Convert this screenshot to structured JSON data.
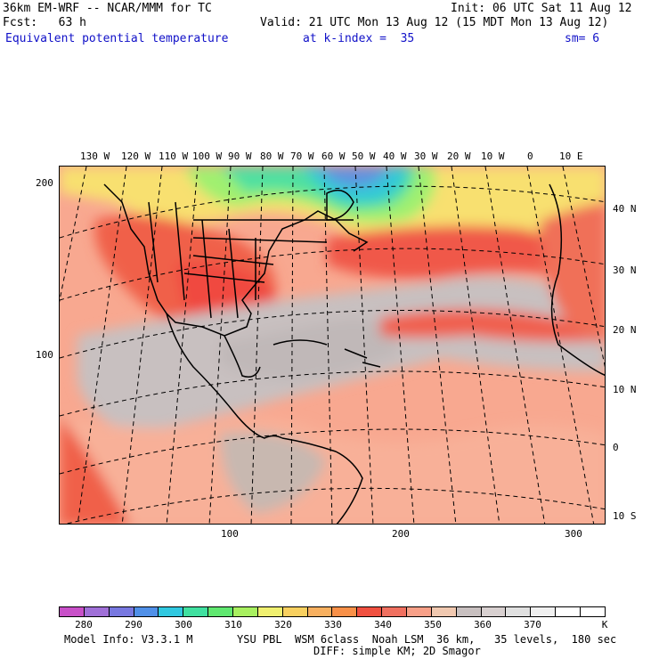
{
  "header": {
    "model": "36km EM-WRF -- NCAR/MMM for TC",
    "init": "Init: 06 UTC Sat 11 Aug 12",
    "fcst": "Fcst:   63 h",
    "valid": "Valid: 21 UTC Mon 13 Aug 12 (15 MDT Mon 13 Aug 12)",
    "field": "Equivalent potential temperature",
    "level": "at k-index =  35",
    "smooth": "sm= 6"
  },
  "top_lon_labels": [
    "130 W",
    "120 W",
    "110 W",
    "100 W",
    "90 W",
    "80 W",
    "70 W",
    "60 W",
    "50 W",
    "40 W",
    "30 W",
    "20 W",
    "10 W",
    "0",
    "10 E"
  ],
  "right_lat_labels": [
    "40 N",
    "30 N",
    "20 N",
    "10 N",
    "0",
    "10 S"
  ],
  "left_grid_labels": [
    "200",
    "100"
  ],
  "bottom_grid_labels": [
    "100",
    "200",
    "300"
  ],
  "colorbar": {
    "labels": [
      "280",
      "290",
      "300",
      "310",
      "320",
      "330",
      "340",
      "350",
      "360",
      "370"
    ],
    "unit": "K",
    "colors": [
      "#c850c8",
      "#a070d8",
      "#7878e0",
      "#5090e8",
      "#30c8e0",
      "#40e0a0",
      "#60e870",
      "#a8f060",
      "#f0f070",
      "#f8d060",
      "#f8b060",
      "#f89048",
      "#f05040",
      "#f07060",
      "#f8a088",
      "#f0c8b0",
      "#c8c0c0",
      "#d8d0d0",
      "#e0e0e0",
      "#f0f0f0",
      "#ffffff",
      "#ffffff"
    ]
  },
  "footer": {
    "info": "Model Info: V3.3.1 M",
    "phys1": "YSU PBL  WSM 6class  Noah LSM  36 km,   35 levels,  180 sec",
    "phys2": "DIFF: simple KM; 2D Smagor"
  }
}
